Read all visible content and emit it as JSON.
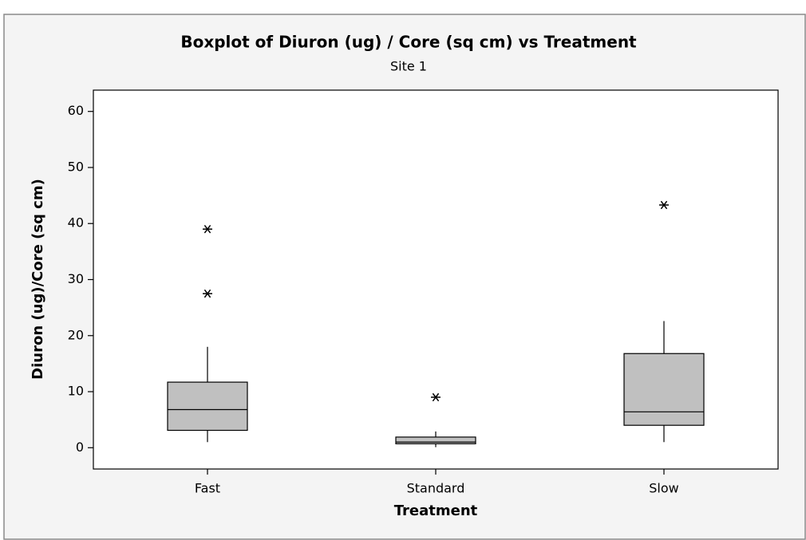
{
  "chart_data": {
    "type": "box",
    "title": "Boxplot of Diuron (ug) / Core (sq cm) vs Treatment",
    "subtitle": "Site 1",
    "x_label": "Treatment",
    "y_label": "Diuron (ug)/Core (sq cm)",
    "categories": [
      "Fast",
      "Standard",
      "Slow"
    ],
    "whisker_low": [
      1.0,
      0.1,
      1.0
    ],
    "q1": [
      3.1,
      0.7,
      4.0
    ],
    "median": [
      6.8,
      1.0,
      6.4
    ],
    "q3": [
      11.7,
      1.9,
      16.8
    ],
    "whisker_high": [
      18.0,
      2.9,
      22.6
    ],
    "outliers": [
      [
        27.5,
        39.0
      ],
      [
        9.0
      ],
      [
        43.3
      ]
    ],
    "color": "#c0c0c0",
    "ylim": [
      -3.8,
      63.8
    ],
    "yticks": [
      0,
      10,
      20,
      30,
      40,
      50,
      60
    ]
  }
}
